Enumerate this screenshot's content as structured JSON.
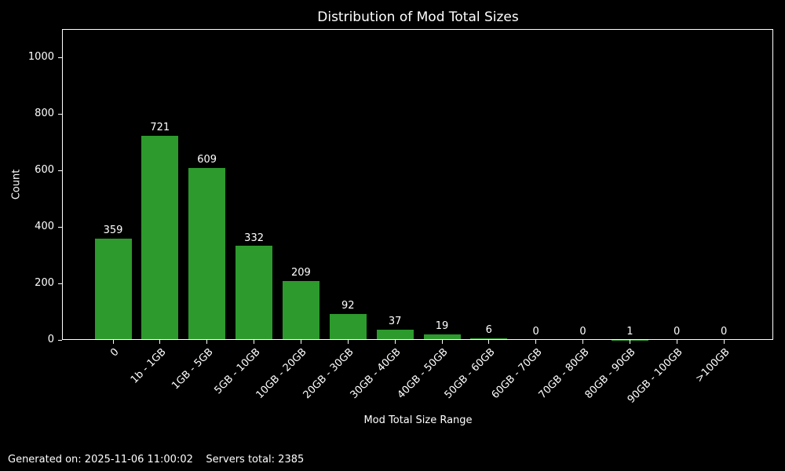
{
  "figure": {
    "background": "#000000",
    "text_color": "#ffffff"
  },
  "footer": {
    "text": "Generated on: 2025-11-06 11:00:02    Servers total: 2385"
  },
  "chart_data": {
    "type": "bar",
    "title": "Distribution of Mod Total Sizes",
    "xlabel": "Mod Total Size Range",
    "ylabel": "Count",
    "categories": [
      "0",
      "1b - 1GB",
      "1GB - 5GB",
      "5GB - 10GB",
      "10GB - 20GB",
      "20GB - 30GB",
      "30GB - 40GB",
      "40GB - 50GB",
      "50GB - 60GB",
      "60GB - 70GB",
      "70GB - 80GB",
      "80GB - 90GB",
      "90GB - 100GB",
      ">100GB"
    ],
    "values": [
      359,
      721,
      609,
      332,
      209,
      92,
      37,
      19,
      6,
      0,
      0,
      1,
      0,
      0
    ],
    "yticks": [
      0,
      200,
      400,
      600,
      800,
      1000
    ],
    "ylim": [
      0,
      1100
    ],
    "bar_color": "#2c9a2c",
    "axis_color": "#ffffff",
    "text_color": "#ffffff",
    "background": "#000000",
    "grid": false,
    "legend_position": "none",
    "x_tick_rotation_deg": 45,
    "bar_value_labels_shown": true,
    "annotations": [
      "Generated on: 2025-11-06 11:00:02",
      "Servers total: 2385"
    ]
  }
}
